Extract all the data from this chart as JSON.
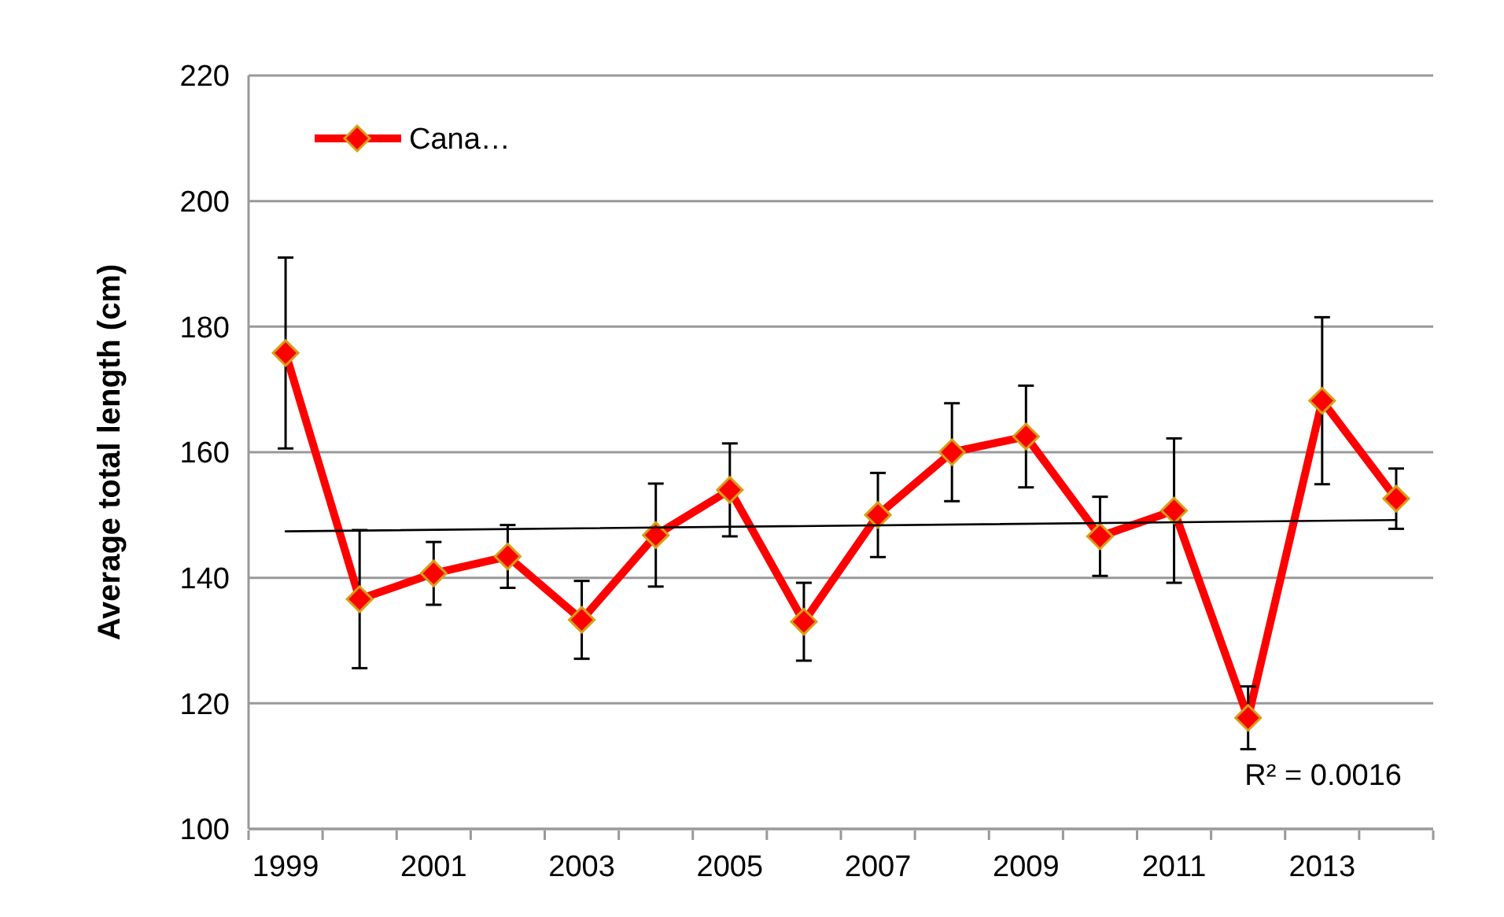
{
  "chart_data": {
    "type": "line",
    "ylabel": "Average total length (cm)",
    "x": [
      1999,
      2000,
      2001,
      2002,
      2003,
      2004,
      2005,
      2006,
      2007,
      2008,
      2009,
      2010,
      2011,
      2012,
      2013,
      2014
    ],
    "xlim": [
      1998.5,
      2014.5
    ],
    "xticks": [
      1999,
      2001,
      2003,
      2005,
      2007,
      2009,
      2011,
      2013,
      {
        "value": 1998.5,
        "label": null
      },
      {
        "value": 1999.5,
        "label": null
      },
      {
        "value": 2000.5,
        "label": null
      },
      {
        "value": 2001.5,
        "label": null
      },
      {
        "value": 2002.5,
        "label": null
      },
      {
        "value": 2003.5,
        "label": null
      },
      {
        "value": 2004.5,
        "label": null
      },
      {
        "value": 2005.5,
        "label": null
      },
      {
        "value": 2006.5,
        "label": null
      },
      {
        "value": 2007.5,
        "label": null
      },
      {
        "value": 2008.5,
        "label": null
      },
      {
        "value": 2009.5,
        "label": null
      },
      {
        "value": 2010.5,
        "label": null
      },
      {
        "value": 2011.5,
        "label": null
      },
      {
        "value": 2012.5,
        "label": null
      },
      {
        "value": 2013.5,
        "label": null
      },
      {
        "value": 2014.5,
        "label": null
      }
    ],
    "ylim": [
      100,
      220
    ],
    "yticks": [
      100,
      120,
      140,
      160,
      180,
      200,
      220
    ],
    "grid": "y",
    "legend": "top left",
    "series": [
      {
        "name": "Cana…",
        "color": "#ff0000",
        "marker": "diamond",
        "values": [
          175.8,
          136.6,
          140.7,
          143.4,
          133.3,
          146.8,
          154,
          133,
          150,
          160,
          162.5,
          146.6,
          150.7,
          117.7,
          168.2,
          152.6
        ],
        "errors": [
          15.2,
          11,
          5,
          5,
          6.2,
          8.2,
          7.4,
          6.2,
          6.7,
          7.8,
          8.1,
          6.3,
          11.5,
          5,
          13.3,
          4.8
        ]
      },
      {
        "type": "line",
        "color": "#000000",
        "marker": "none",
        "x": [
          1999,
          2014
        ],
        "values": [
          147.4,
          149.2
        ]
      }
    ],
    "annotations": [
      "R² = 0.0016"
    ]
  }
}
